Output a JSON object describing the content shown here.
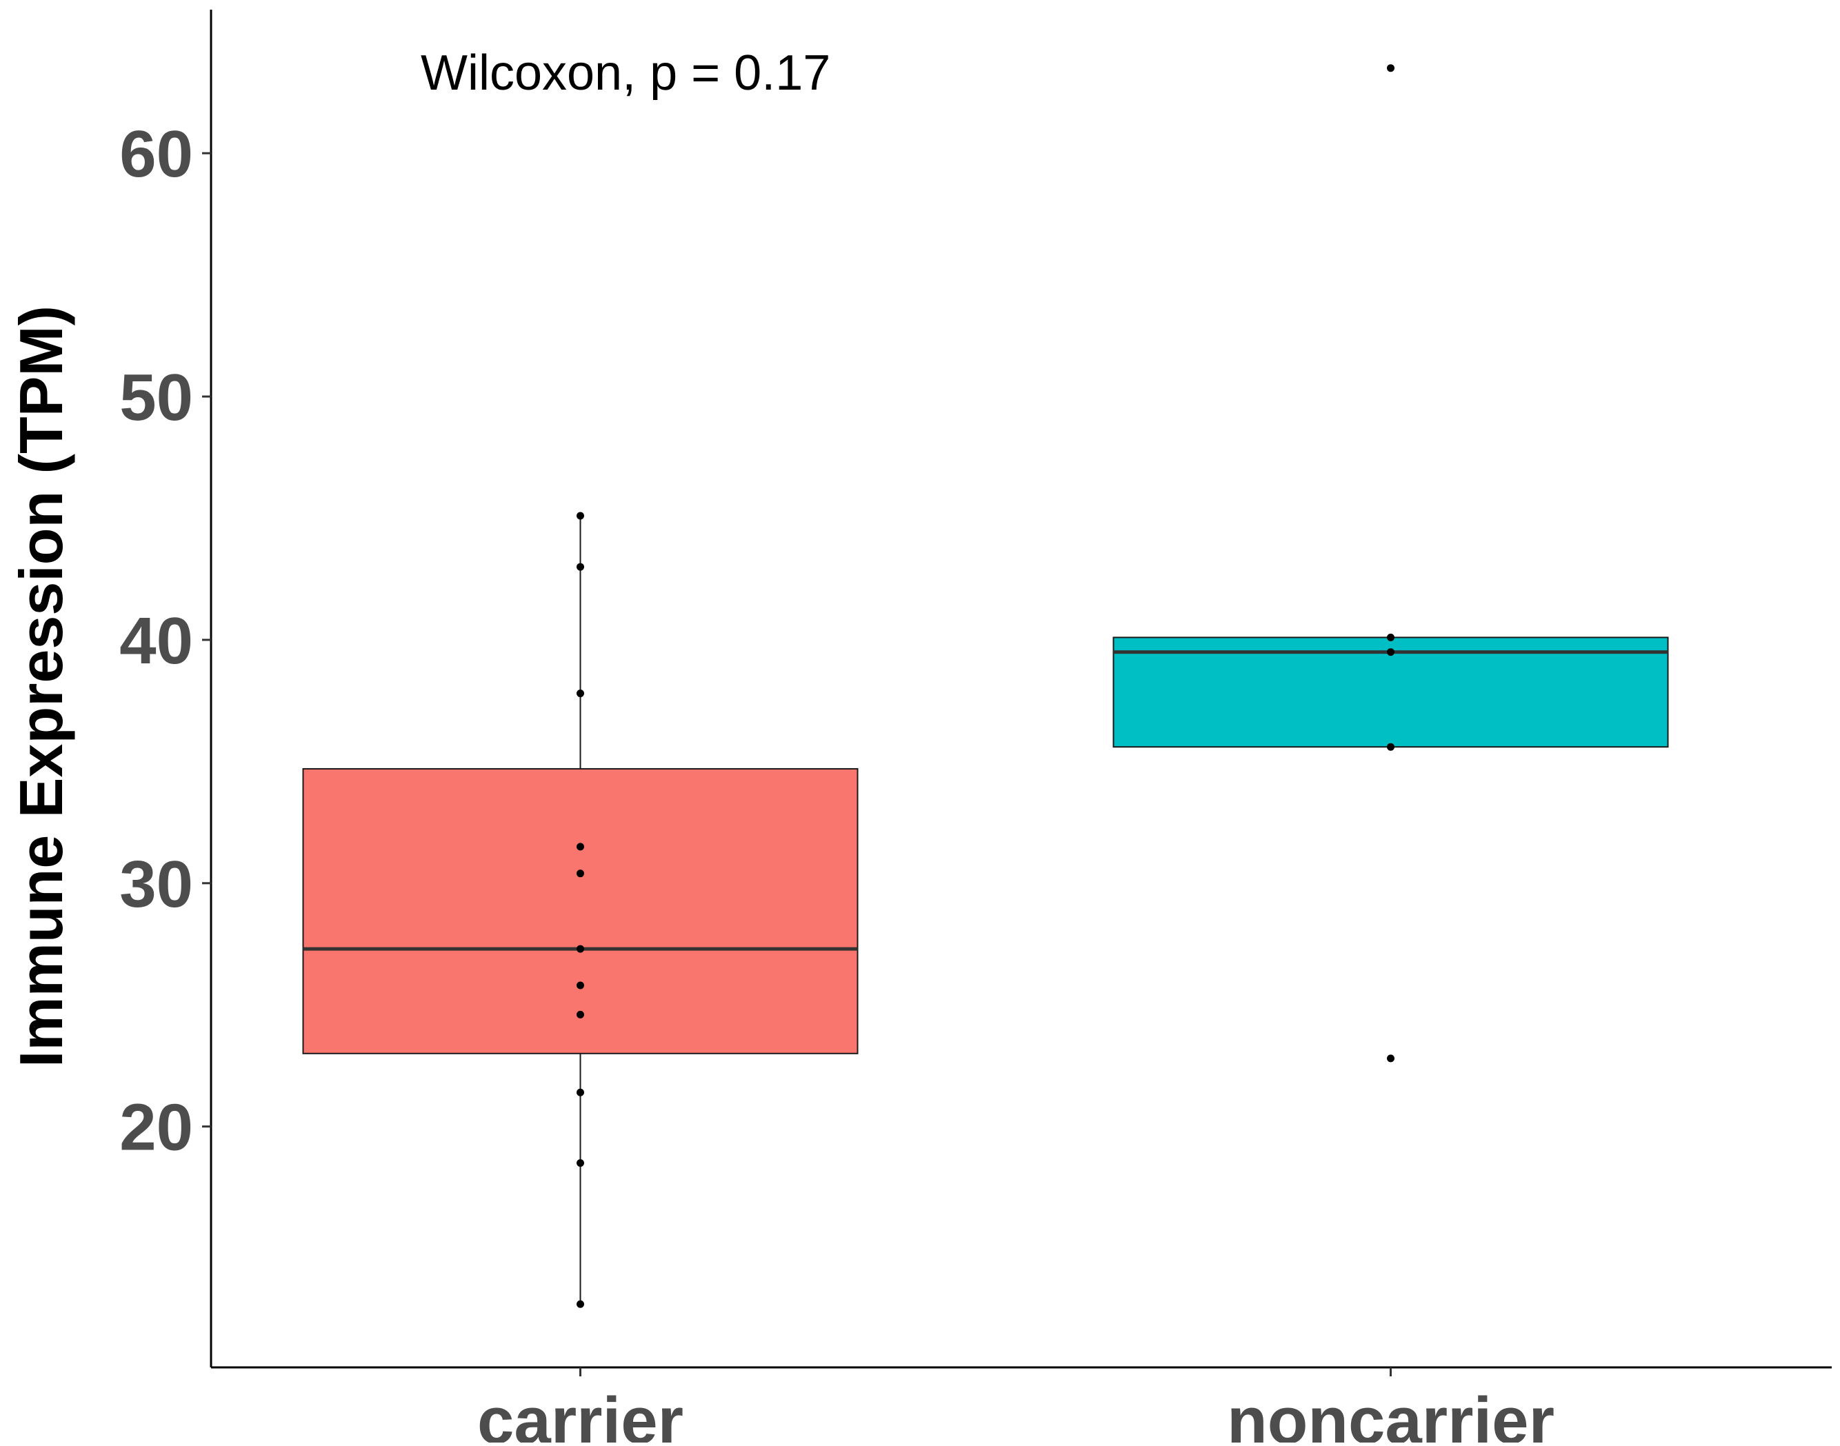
{
  "chart_data": {
    "type": "box",
    "title": "",
    "xlabel": "",
    "ylabel": "Immune Expression (TPM)",
    "ylim": [
      10.1,
      65.9
    ],
    "yticks": [
      20,
      30,
      40,
      50,
      60
    ],
    "categories": [
      "carrier",
      "noncarrier"
    ],
    "annotation": "Wilcoxon, p = 0.17",
    "grid": false,
    "legend": "none",
    "colors": {
      "carrier": "#F8766D",
      "noncarrier": "#00BFC4",
      "outline": "#1a1a1a",
      "median": "#333333",
      "points": "#000000",
      "tick_text": "#4d4d4d"
    },
    "boxes": [
      {
        "name": "carrier",
        "whisker_low": 12.7,
        "q1": 23.0,
        "median": 27.3,
        "q3": 34.7,
        "whisker_high": 45.1,
        "points": [
          45.1,
          43.0,
          37.8,
          31.5,
          30.4,
          27.3,
          25.8,
          24.6,
          21.4,
          18.5,
          12.7
        ]
      },
      {
        "name": "noncarrier",
        "whisker_low": 35.6,
        "q1": 35.6,
        "median": 39.5,
        "q3": 40.1,
        "whisker_high": 40.1,
        "points": [
          63.5,
          40.1,
          39.5,
          35.6,
          22.8
        ]
      }
    ]
  }
}
